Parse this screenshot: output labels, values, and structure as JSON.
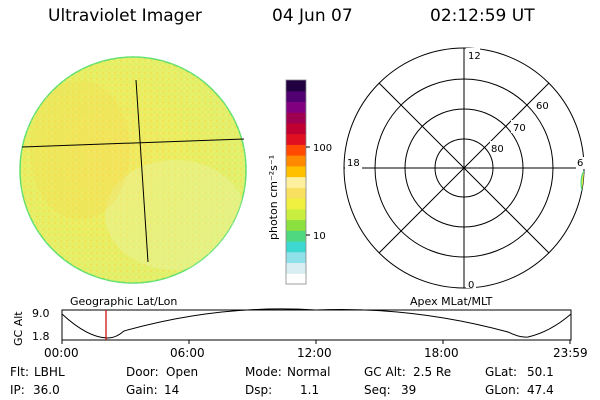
{
  "header": {
    "title": "Ultraviolet Imager",
    "date": "04 Jun 07",
    "time": "02:12:59 UT"
  },
  "colorbar": {
    "label": "photon cm⁻²s⁻¹",
    "ticks": [
      "100",
      "10"
    ],
    "colors": [
      "#ffffff",
      "#d8eef2",
      "#8fe0e8",
      "#3fd8d0",
      "#50d880",
      "#8be040",
      "#c8ee40",
      "#f0f040",
      "#f8e060",
      "#fff0a0",
      "#ffc000",
      "#ff8a00",
      "#ff4a00",
      "#e01020",
      "#c00030",
      "#a00050",
      "#800080",
      "#500070",
      "#200040"
    ]
  },
  "polar_plot": {
    "labels": {
      "top": "12",
      "bottom": "0",
      "left": "18",
      "right": "6"
    },
    "lat_labels": [
      "60",
      "70",
      "80"
    ]
  },
  "orbit_panel": {
    "left_label": "Geographic Lat/Lon",
    "right_label": "Apex MLat/MLT",
    "y_axis_title": "GC Alt",
    "y_ticks": [
      "9.0",
      "1.8"
    ],
    "x_ticks": [
      "00:00",
      "06:00",
      "12:00",
      "18:00",
      "23:59"
    ],
    "marker_color": "#cc0000"
  },
  "status": {
    "row1": [
      {
        "label": "Flt:",
        "value": "LBHL"
      },
      {
        "label": "Door:",
        "value": "Open"
      },
      {
        "label": "Mode:",
        "value": "Normal"
      },
      {
        "label": "GC Alt:",
        "value": "2.5 Re"
      },
      {
        "label": "GLat:",
        "value": "50.1"
      }
    ],
    "row2": [
      {
        "label": "IP:",
        "value": "36.0"
      },
      {
        "label": "Gain:",
        "value": "14"
      },
      {
        "label": "Dsp:",
        "value": "1.1"
      },
      {
        "label": "Seq:",
        "value": "39"
      },
      {
        "label": "GLon:",
        "value": "47.4"
      }
    ]
  }
}
